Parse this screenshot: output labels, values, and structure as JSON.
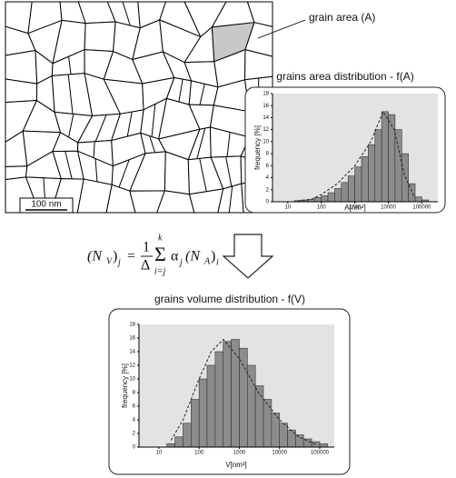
{
  "annotation": "grain area (A)",
  "scale_bar": "100 nm",
  "formula": {
    "lhs_open": "(N",
    "lhs_sub": "V",
    "lhs_close": ")",
    "lhs_index": "j",
    "equals": "=",
    "numerator": "1",
    "denominator": "Δ",
    "sum_top": "k",
    "sum": "Σ",
    "sum_bottom": "i=j",
    "alpha": "α",
    "alpha_index": "j",
    "rhs_open": "(N",
    "rhs_sub": "A",
    "rhs_close": ")",
    "rhs_index": "i"
  },
  "chart_data": [
    {
      "type": "histogram",
      "title": "grains area distribution - f(A)",
      "xlabel": "A[nm²]",
      "ylabel": "frequency [%]",
      "xscale": "log",
      "xlim": [
        3.5,
        300000
      ],
      "xticks": [
        10,
        100,
        1000,
        10000,
        100000
      ],
      "ylim": [
        0,
        18
      ],
      "yticks": [
        0,
        2,
        4,
        6,
        8,
        10,
        12,
        14,
        16,
        18
      ],
      "bins": [
        15.8,
        25.1,
        39.8,
        63.1,
        100,
        158,
        251,
        398,
        631,
        1000,
        1585,
        2512,
        3981,
        6310,
        10000,
        15849,
        25119,
        39811,
        63096,
        100000,
        158489
      ],
      "values": [
        0.2,
        0.3,
        0.4,
        0.7,
        1,
        1.5,
        2.2,
        3.2,
        4.3,
        5.8,
        7.5,
        9.5,
        12,
        15,
        14.5,
        12,
        8,
        3,
        0.8,
        0.3
      ],
      "color": "#8c8c8c",
      "fit": {
        "x": [
          20,
          50,
          100,
          300,
          1000,
          3000,
          7000,
          15000,
          30000,
          60000
        ],
        "values": [
          0.1,
          0.4,
          1.2,
          3,
          6,
          10,
          15,
          12,
          4.5,
          0.8
        ]
      }
    },
    {
      "type": "histogram",
      "title": "grains volume distribution - f(V)",
      "xlabel": "V[nm³]",
      "ylabel": "frequency [%]",
      "xscale": "log",
      "xlim": [
        3.2,
        230000
      ],
      "xticks": [
        10,
        100,
        1000,
        10000,
        100000
      ],
      "ylim": [
        0,
        18
      ],
      "yticks": [
        0,
        2,
        4,
        6,
        8,
        10,
        12,
        14,
        16,
        18
      ],
      "bins": [
        15.8,
        25.1,
        39.8,
        63.1,
        100,
        158,
        251,
        398,
        631,
        1000,
        1585,
        2512,
        3981,
        6310,
        10000,
        15849,
        25119,
        39811,
        63096,
        100000,
        158489
      ],
      "values": [
        0.5,
        1.5,
        3.5,
        7,
        10,
        12,
        14,
        15.5,
        15.8,
        14.5,
        12,
        9,
        7,
        5,
        3.5,
        2.5,
        1.8,
        1.2,
        0.8,
        0.5
      ],
      "color": "#8c8c8c",
      "fit": {
        "x": [
          20,
          40,
          100,
          200,
          400,
          1000,
          3000,
          10000,
          30000,
          80000
        ],
        "values": [
          1,
          4,
          10,
          14,
          15.8,
          13,
          8,
          4,
          1.5,
          0.4
        ]
      }
    }
  ]
}
